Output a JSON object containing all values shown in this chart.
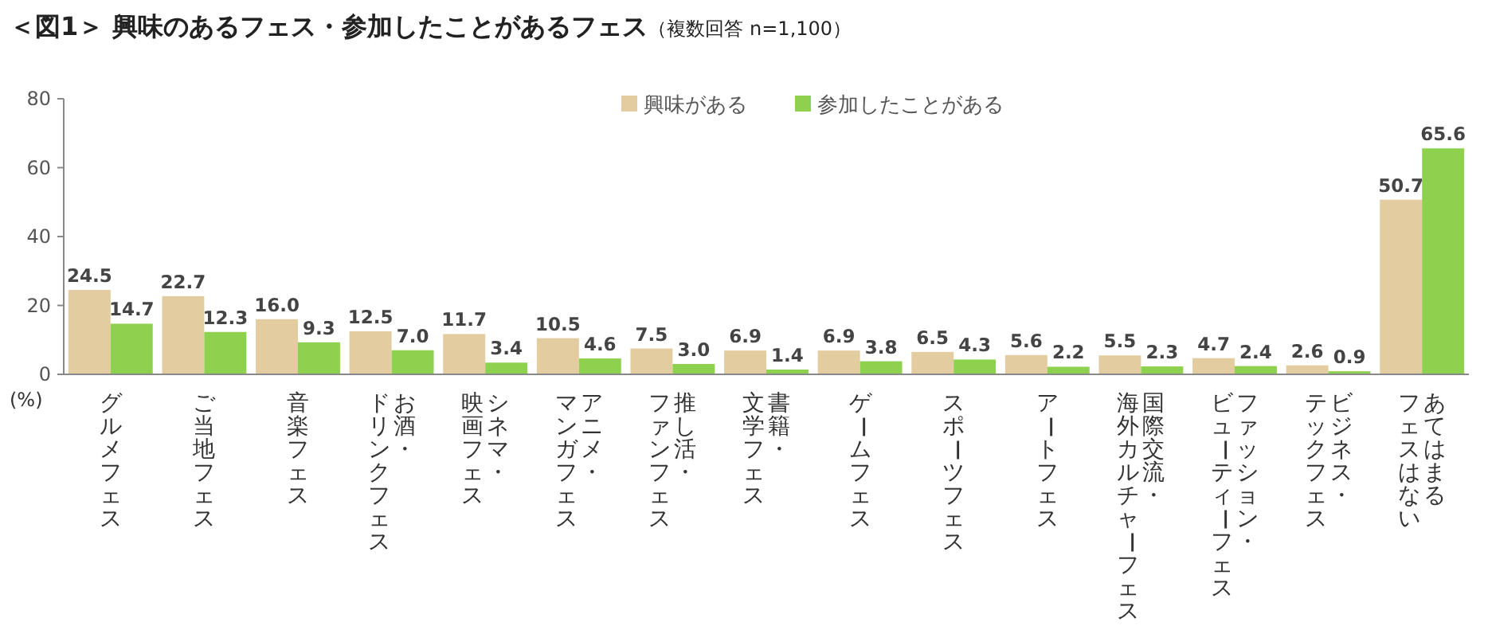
{
  "chart_data": {
    "type": "bar",
    "title": "＜図1＞ 興味のあるフェス・参加したことがあるフェス",
    "subtitle": "（複数回答 n=1,100）",
    "ylabel": "(%)",
    "categories": [
      "グルメフェス",
      "ご当地フェス",
      "音楽フェス",
      "お酒・ドリンクフェス",
      "シネマ・映画フェス",
      "アニメ・マンガフェス",
      "推し活・ファンフェス",
      "書籍・文学フェス",
      "ゲームフェス",
      "スポーツフェス",
      "アートフェス",
      "国際交流・海外カルチャーフェス",
      "ファッション・ビューティーフェス",
      "ビジネス・テックフェス",
      "あてはまるフェスはない"
    ],
    "series": [
      {
        "name": "興味がある",
        "color": "#e3cc9f",
        "values": [
          24.5,
          22.7,
          16.0,
          12.5,
          11.7,
          10.5,
          7.5,
          6.9,
          6.9,
          6.5,
          5.6,
          5.5,
          4.7,
          2.6,
          50.7
        ],
        "value_labels": [
          "24.5",
          "22.7",
          "16.0",
          "12.5",
          "11.7",
          "10.5",
          "7.5",
          "6.9",
          "6.9",
          "6.5",
          "5.6",
          "5.5",
          "4.7",
          "2.6",
          "50.7"
        ]
      },
      {
        "name": "参加したことがある",
        "color": "#8ed14f",
        "values": [
          14.7,
          12.3,
          9.3,
          7.0,
          3.4,
          4.6,
          3.0,
          1.4,
          3.8,
          4.3,
          2.2,
          2.3,
          2.4,
          0.9,
          65.6
        ],
        "value_labels": [
          "14.7",
          "12.3",
          "9.3",
          "7.0",
          "3.4",
          "4.6",
          "3.0",
          "1.4",
          "3.8",
          "4.3",
          "2.2",
          "2.3",
          "2.4",
          "0.9",
          "65.6"
        ]
      }
    ],
    "ylim": [
      0,
      80
    ],
    "yticks": [
      0,
      20,
      40,
      60,
      80
    ],
    "legend": "top",
    "grid": false
  }
}
